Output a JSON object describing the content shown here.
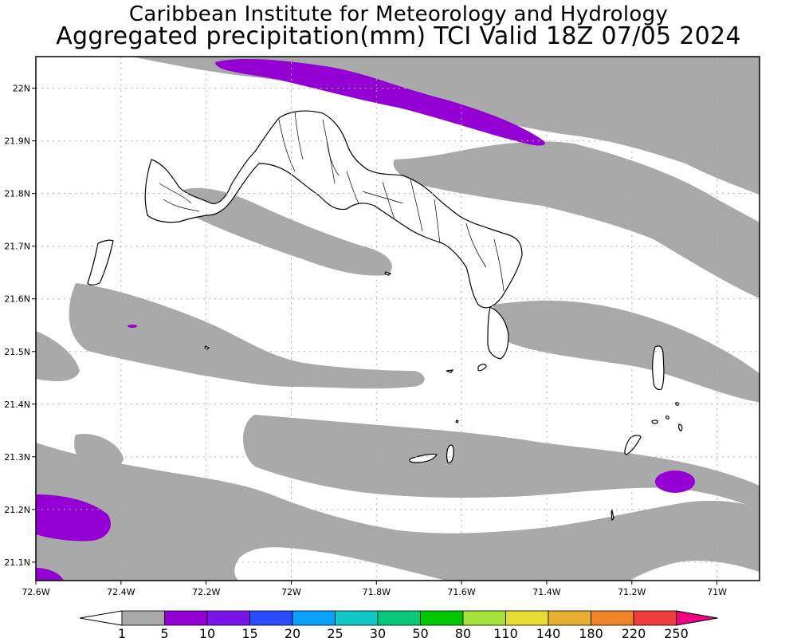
{
  "header": {
    "line1": "Caribbean Institute for Meteorology and Hydrology",
    "line2": "Aggregated precipitation(mm) TCI Valid 18Z 07/05 2024"
  },
  "map": {
    "lon_range": [
      -72.6,
      -70.9
    ],
    "lat_range": [
      21.065,
      22.06
    ],
    "lon_ticks": [
      {
        "value": -72.6,
        "label": "72.6W"
      },
      {
        "value": -72.4,
        "label": "72.4W"
      },
      {
        "value": -72.2,
        "label": "72.2W"
      },
      {
        "value": -72.0,
        "label": "72W"
      },
      {
        "value": -71.8,
        "label": "71.8W"
      },
      {
        "value": -71.6,
        "label": "71.6W"
      },
      {
        "value": -71.4,
        "label": "71.4W"
      },
      {
        "value": -71.2,
        "label": "71.2W"
      },
      {
        "value": -71.0,
        "label": "71W"
      }
    ],
    "lat_ticks": [
      {
        "value": 22.0,
        "label": "22N"
      },
      {
        "value": 21.9,
        "label": "21.9N"
      },
      {
        "value": 21.8,
        "label": "21.8N"
      },
      {
        "value": 21.7,
        "label": "21.7N"
      },
      {
        "value": 21.6,
        "label": "21.6N"
      },
      {
        "value": 21.5,
        "label": "21.5N"
      },
      {
        "value": 21.4,
        "label": "21.4N"
      },
      {
        "value": 21.3,
        "label": "21.3N"
      },
      {
        "value": 21.2,
        "label": "21.2N"
      },
      {
        "value": 21.1,
        "label": "21.1N"
      }
    ],
    "grid": true,
    "colors": {
      "frame": "#000000",
      "grid": "#b0b0b0",
      "gray_band": "#a9a9a9",
      "purple_band": "#9400d3",
      "coastline": "#000000",
      "land": "#ffffff"
    }
  },
  "colorbar": {
    "labels": [
      "1",
      "5",
      "10",
      "15",
      "20",
      "25",
      "30",
      "50",
      "80",
      "110",
      "140",
      "180",
      "220",
      "250"
    ],
    "colors": [
      "#a9a9a9",
      "#9400d3",
      "#7b14e8",
      "#2a4bff",
      "#0aa0ff",
      "#10c8c8",
      "#05c878",
      "#00c800",
      "#a6e23c",
      "#e6dc32",
      "#e6af2d",
      "#f08228",
      "#f03c3c",
      "#f00082"
    ],
    "under_color": "#ffffff",
    "over_color": "#f00082"
  }
}
